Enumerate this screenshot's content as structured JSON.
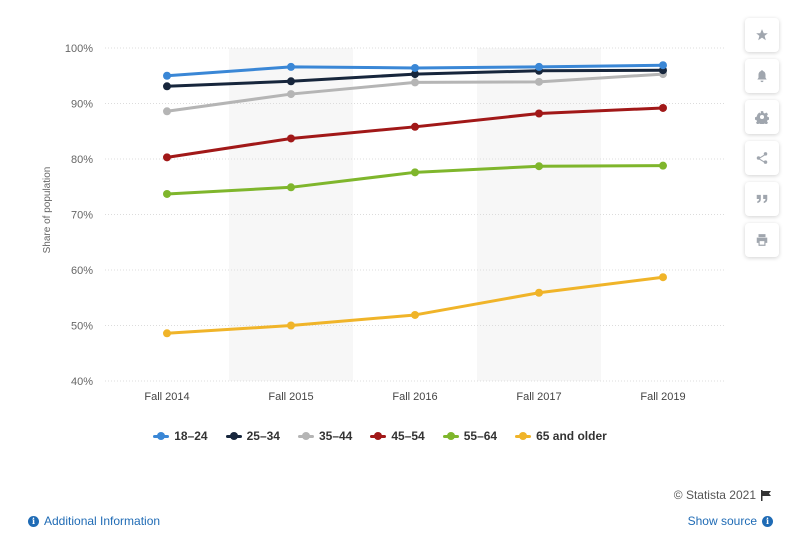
{
  "chart_data": {
    "type": "line",
    "title": "",
    "xlabel": "",
    "ylabel": "Share of population",
    "categories": [
      "Fall 2014",
      "Fall 2015",
      "Fall 2016",
      "Fall 2017",
      "Fall 2019"
    ],
    "ylim": [
      40,
      100
    ],
    "yticks": [
      "40%",
      "50%",
      "60%",
      "70%",
      "80%",
      "90%",
      "100%"
    ],
    "grid": true,
    "legend_position": "bottom",
    "series": [
      {
        "name": "18-24",
        "color": "#3a87d6",
        "values": [
          95.0,
          96.6,
          96.4,
          96.6,
          96.9
        ]
      },
      {
        "name": "25-34",
        "color": "#17263c",
        "values": [
          93.1,
          94.0,
          95.3,
          95.9,
          96.0
        ]
      },
      {
        "name": "35-44",
        "color": "#b5b5b5",
        "values": [
          88.6,
          91.7,
          93.8,
          93.9,
          95.3
        ]
      },
      {
        "name": "45-54",
        "color": "#a11818",
        "values": [
          80.3,
          83.7,
          85.8,
          88.2,
          89.2
        ]
      },
      {
        "name": "55-64",
        "color": "#7fb62c",
        "values": [
          73.7,
          74.9,
          77.6,
          78.7,
          78.8
        ]
      },
      {
        "name": "65 and older",
        "color": "#f0b429",
        "values": [
          48.6,
          50.0,
          51.9,
          55.9,
          58.7
        ]
      }
    ]
  },
  "legend": {
    "items": [
      {
        "label": "18–24",
        "color": "#3a87d6"
      },
      {
        "label": "25–34",
        "color": "#17263c"
      },
      {
        "label": "35–44",
        "color": "#b5b5b5"
      },
      {
        "label": "45–54",
        "color": "#a11818"
      },
      {
        "label": "55–64",
        "color": "#7fb62c"
      },
      {
        "label": "65 and older",
        "color": "#f0b429"
      }
    ]
  },
  "credits": {
    "text": "© Statista 2021"
  },
  "footer": {
    "additional_info": "Additional Information",
    "show_source": "Show source"
  },
  "toolbar": {
    "icons": [
      "star-icon",
      "bell-icon",
      "gear-icon",
      "share-icon",
      "quote-icon",
      "print-icon"
    ]
  }
}
